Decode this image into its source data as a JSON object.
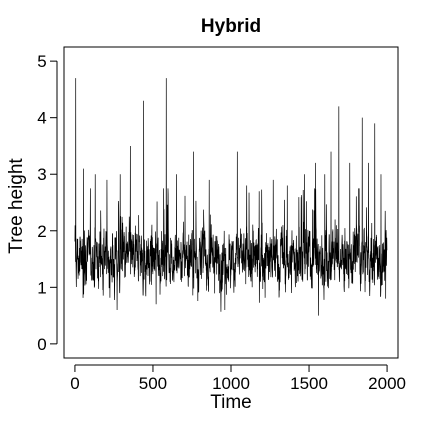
{
  "chart_data": {
    "type": "line",
    "title": "Hybrid",
    "xlabel": "Time",
    "ylabel": "Tree height",
    "xlim": [
      0,
      2000
    ],
    "ylim": [
      0,
      5
    ],
    "xticks": [
      0,
      500,
      1000,
      1500,
      2000
    ],
    "yticks": [
      0,
      1,
      2,
      3,
      4,
      5
    ],
    "xtick_labels": [
      "0",
      "500",
      "1000",
      "1500",
      "2000"
    ],
    "ytick_labels": [
      "0",
      "1",
      "2",
      "3",
      "4",
      "5"
    ],
    "grid": false,
    "legend": "none",
    "line_color": "#000000",
    "series": [
      {
        "n_points": 2000,
        "x_start": 0,
        "x_end": 2000,
        "typical_range": [
          0.6,
          2.5
        ],
        "central_value": 1.5,
        "peaks": [
          {
            "x": 5,
            "y": 4.7
          },
          {
            "x": 55,
            "y": 3.1
          },
          {
            "x": 130,
            "y": 3.0
          },
          {
            "x": 205,
            "y": 2.9
          },
          {
            "x": 290,
            "y": 3.0
          },
          {
            "x": 355,
            "y": 3.5
          },
          {
            "x": 440,
            "y": 4.3
          },
          {
            "x": 520,
            "y": 3.3
          },
          {
            "x": 585,
            "y": 4.7
          },
          {
            "x": 650,
            "y": 3.0
          },
          {
            "x": 760,
            "y": 3.4
          },
          {
            "x": 860,
            "y": 2.9
          },
          {
            "x": 960,
            "y": 2.8
          },
          {
            "x": 1040,
            "y": 3.4
          },
          {
            "x": 1100,
            "y": 2.8
          },
          {
            "x": 1180,
            "y": 2.7
          },
          {
            "x": 1270,
            "y": 2.9
          },
          {
            "x": 1360,
            "y": 2.8
          },
          {
            "x": 1470,
            "y": 3.0
          },
          {
            "x": 1540,
            "y": 3.2
          },
          {
            "x": 1600,
            "y": 3.0
          },
          {
            "x": 1640,
            "y": 3.4
          },
          {
            "x": 1690,
            "y": 4.2
          },
          {
            "x": 1760,
            "y": 3.2
          },
          {
            "x": 1840,
            "y": 4.0
          },
          {
            "x": 1880,
            "y": 3.2
          },
          {
            "x": 1920,
            "y": 3.9
          },
          {
            "x": 1960,
            "y": 3.0
          }
        ],
        "troughs": [
          {
            "x": 270,
            "y": 0.6
          },
          {
            "x": 520,
            "y": 0.7
          },
          {
            "x": 960,
            "y": 0.6
          },
          {
            "x": 1560,
            "y": 0.5
          },
          {
            "x": 1990,
            "y": 0.8
          }
        ]
      }
    ]
  }
}
